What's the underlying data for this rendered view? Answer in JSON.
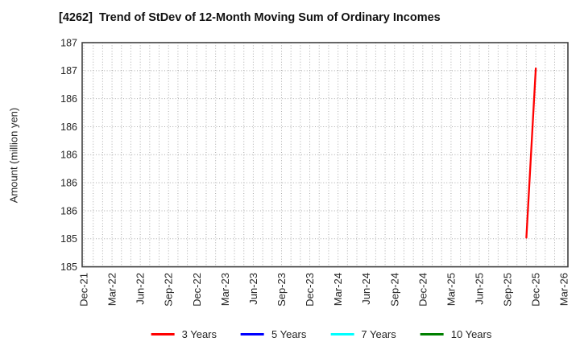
{
  "chart_data": {
    "type": "line",
    "title": "[4262]  Trend of StDev of 12-Month Moving Sum of Ordinary Incomes",
    "ylabel": "Amount (million yen)",
    "x_axis": {
      "start": "Dec-21",
      "end": "Mar-26",
      "span_months": 51,
      "tick_interval_months": 3,
      "tick_labels": [
        "Dec-21",
        "Mar-22",
        "Jun-22",
        "Sep-22",
        "Dec-22",
        "Mar-23",
        "Jun-23",
        "Sep-23",
        "Dec-23",
        "Mar-24",
        "Jun-24",
        "Sep-24",
        "Dec-24",
        "Mar-25",
        "Jun-25",
        "Sep-25",
        "Dec-25",
        "Mar-26"
      ]
    },
    "y_axis": {
      "min": 185.0,
      "max": 187.0,
      "tick_step": 0.25,
      "tick_values": [
        187.0,
        186.75,
        186.5,
        186.25,
        186.0,
        185.75,
        185.5,
        185.25,
        185.0
      ],
      "tick_labels": [
        "187",
        "187",
        "186",
        "186",
        "186",
        "186",
        "186",
        "185",
        "185"
      ]
    },
    "grid": {
      "visible": true,
      "style": "dotted",
      "x_interval_months": 1
    },
    "series": [
      {
        "name": "3 Years",
        "color": "#ff0000",
        "points": [
          {
            "x_label": "Nov-25",
            "month": 47,
            "value": 185.26
          },
          {
            "x_label": "Dec-25",
            "month": 48,
            "value": 186.77
          }
        ]
      },
      {
        "name": "5 Years",
        "color": "#0000ff",
        "points": []
      },
      {
        "name": "7 Years",
        "color": "#00ffff",
        "points": []
      },
      {
        "name": "10 Years",
        "color": "#008000",
        "points": []
      }
    ],
    "legend": {
      "position": "bottom",
      "entries": [
        {
          "label": "3 Years",
          "color": "#ff0000"
        },
        {
          "label": "5 Years",
          "color": "#0000ff"
        },
        {
          "label": "7 Years",
          "color": "#00ffff"
        },
        {
          "label": "10 Years",
          "color": "#008000"
        }
      ]
    },
    "colors": {
      "grid": "#ababab",
      "axis_border": "#404040",
      "tick_text": "#262626",
      "title_text": "#111111"
    }
  }
}
